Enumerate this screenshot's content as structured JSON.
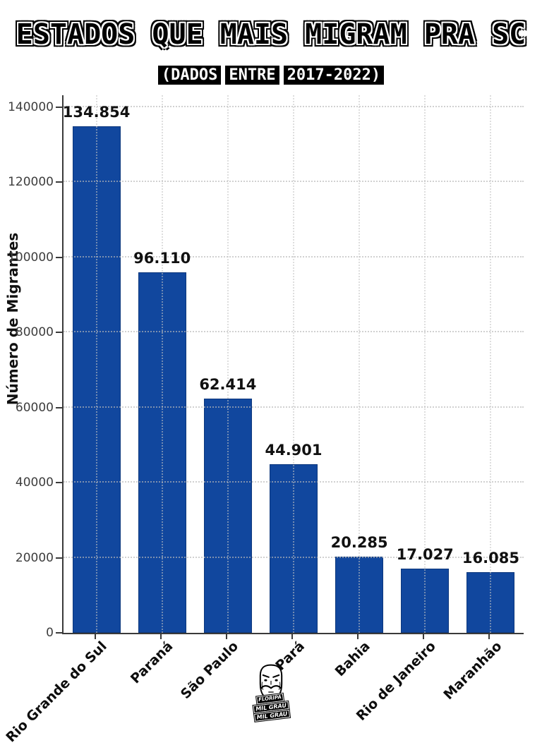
{
  "header": {
    "title": "ESTADOS QUE MAIS MIGRAM PRA SC",
    "subtitle": "(DADOS ENTRE 2017-2022)",
    "subtitle_words": [
      "(DADOS",
      "ENTRE",
      "2017-2022)"
    ]
  },
  "chart_data": {
    "type": "bar",
    "title": "ESTADOS QUE MAIS MIGRAM PRA SC",
    "subtitle": "(DADOS ENTRE 2017-2022)",
    "categories": [
      "Rio Grande do Sul",
      "Paraná",
      "São Paulo",
      "Pará",
      "Bahia",
      "Rio de Janeiro",
      "Maranhão"
    ],
    "values": [
      134854,
      96110,
      62414,
      44901,
      20285,
      17027,
      16085
    ],
    "value_labels": [
      "134.854",
      "96.110",
      "62.414",
      "44.901",
      "20.285",
      "17.027",
      "16.085"
    ],
    "xlabel": "",
    "ylabel": "Número de Migrantes",
    "yticks": [
      0,
      20000,
      40000,
      60000,
      80000,
      100000,
      120000,
      140000
    ],
    "ytick_labels": [
      "0",
      "20000",
      "40000",
      "60000",
      "80000",
      "100000",
      "120000",
      "140000"
    ],
    "ylim": [
      0,
      143200
    ],
    "grid": true,
    "grid_style": "dotted",
    "legend": "none",
    "bar_color": "#11479e"
  },
  "colors": {
    "bar": "#11479e",
    "axis": "#3a3a3a",
    "grid": "#bdbdbd",
    "tick_label": "#3d3d3d",
    "value_label": "#111111",
    "background": "#ffffff"
  },
  "logo": {
    "mask_icon": "guy-fawkes-mask",
    "lines": [
      "FLORIPA",
      "MIL GRAU",
      "MIL GRAU"
    ]
  }
}
